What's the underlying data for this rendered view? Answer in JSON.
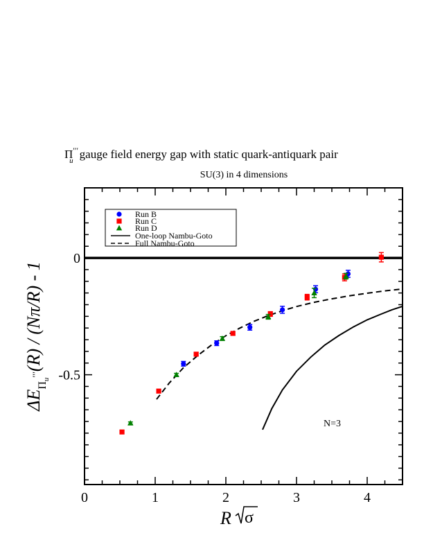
{
  "chart_data": {
    "type": "scatter",
    "title_prefix": "Π",
    "title_sub": "u",
    "title_sup": "′′′",
    "title_rest": "gauge field energy gap with static quark-antiquark pair",
    "subtitle": "SU(3) in 4 dimensions",
    "xlabel_main": "R",
    "xlabel_sqrt": "σ",
    "ylabel_delta": "ΔE",
    "ylabel_sub": "Π",
    "ylabel_subsub": "u",
    "ylabel_sup": "′′′",
    "ylabel_rest": "(R) / (Nπ/R) - 1",
    "annotation": "N=3",
    "xlim": [
      0,
      4.5
    ],
    "ylim": [
      -0.97,
      0.3
    ],
    "x_ticks": [
      0,
      1,
      2,
      3,
      4
    ],
    "x_tick_labels": [
      "0",
      "1",
      "2",
      "3",
      "4"
    ],
    "y_ticks": [
      0,
      -0.5
    ],
    "y_tick_labels": [
      "0",
      "-0.5"
    ],
    "reference_line_y": 0,
    "grid": false,
    "legend_position": "top-left",
    "series": [
      {
        "name": "Run B",
        "marker": "circle",
        "color": "#0000ff",
        "points": [
          {
            "x": 1.4,
            "y": -0.453,
            "err": 0.01
          },
          {
            "x": 1.87,
            "y": -0.365,
            "err": 0.01
          },
          {
            "x": 2.34,
            "y": -0.297,
            "err": 0.012
          },
          {
            "x": 2.8,
            "y": -0.222,
            "err": 0.015
          },
          {
            "x": 3.27,
            "y": -0.134,
            "err": 0.015
          },
          {
            "x": 3.73,
            "y": -0.068,
            "err": 0.015
          }
        ]
      },
      {
        "name": "Run C",
        "marker": "square",
        "color": "#ff0000",
        "points": [
          {
            "x": 0.53,
            "y": -0.745,
            "err": 0.005
          },
          {
            "x": 1.05,
            "y": -0.57,
            "err": 0.005
          },
          {
            "x": 1.58,
            "y": -0.412,
            "err": 0.008
          },
          {
            "x": 2.1,
            "y": -0.323,
            "err": 0.008
          },
          {
            "x": 2.63,
            "y": -0.24,
            "err": 0.01
          },
          {
            "x": 3.15,
            "y": -0.168,
            "err": 0.012
          },
          {
            "x": 3.68,
            "y": -0.083,
            "err": 0.015
          },
          {
            "x": 4.2,
            "y": 0.003,
            "err": 0.02
          }
        ]
      },
      {
        "name": "Run D",
        "marker": "triangle",
        "color": "#008000",
        "points": [
          {
            "x": 0.65,
            "y": -0.707,
            "err": 0.005
          },
          {
            "x": 1.3,
            "y": -0.5,
            "err": 0.006
          },
          {
            "x": 1.95,
            "y": -0.345,
            "err": 0.008
          },
          {
            "x": 2.6,
            "y": -0.252,
            "err": 0.01
          },
          {
            "x": 3.25,
            "y": -0.15,
            "err": 0.02
          },
          {
            "x": 3.7,
            "y": -0.078,
            "err": 0.012
          }
        ]
      }
    ],
    "curves": [
      {
        "name": "One-loop Nambu-Goto",
        "style": "solid",
        "points": [
          [
            2.52,
            -0.735
          ],
          [
            2.65,
            -0.645
          ],
          [
            2.8,
            -0.565
          ],
          [
            3.0,
            -0.485
          ],
          [
            3.2,
            -0.425
          ],
          [
            3.4,
            -0.373
          ],
          [
            3.6,
            -0.332
          ],
          [
            3.8,
            -0.296
          ],
          [
            4.0,
            -0.265
          ],
          [
            4.2,
            -0.24
          ],
          [
            4.35,
            -0.222
          ],
          [
            4.5,
            -0.207
          ]
        ]
      },
      {
        "name": "Full Nambu-Goto",
        "style": "dashed",
        "points": [
          [
            1.02,
            -0.605
          ],
          [
            1.2,
            -0.535
          ],
          [
            1.4,
            -0.47
          ],
          [
            1.6,
            -0.418
          ],
          [
            1.8,
            -0.372
          ],
          [
            2.0,
            -0.333
          ],
          [
            2.2,
            -0.3
          ],
          [
            2.4,
            -0.271
          ],
          [
            2.6,
            -0.247
          ],
          [
            2.8,
            -0.226
          ],
          [
            3.0,
            -0.208
          ],
          [
            3.25,
            -0.19
          ],
          [
            3.5,
            -0.175
          ],
          [
            3.75,
            -0.162
          ],
          [
            4.0,
            -0.151
          ],
          [
            4.25,
            -0.141
          ],
          [
            4.5,
            -0.133
          ]
        ]
      }
    ]
  }
}
